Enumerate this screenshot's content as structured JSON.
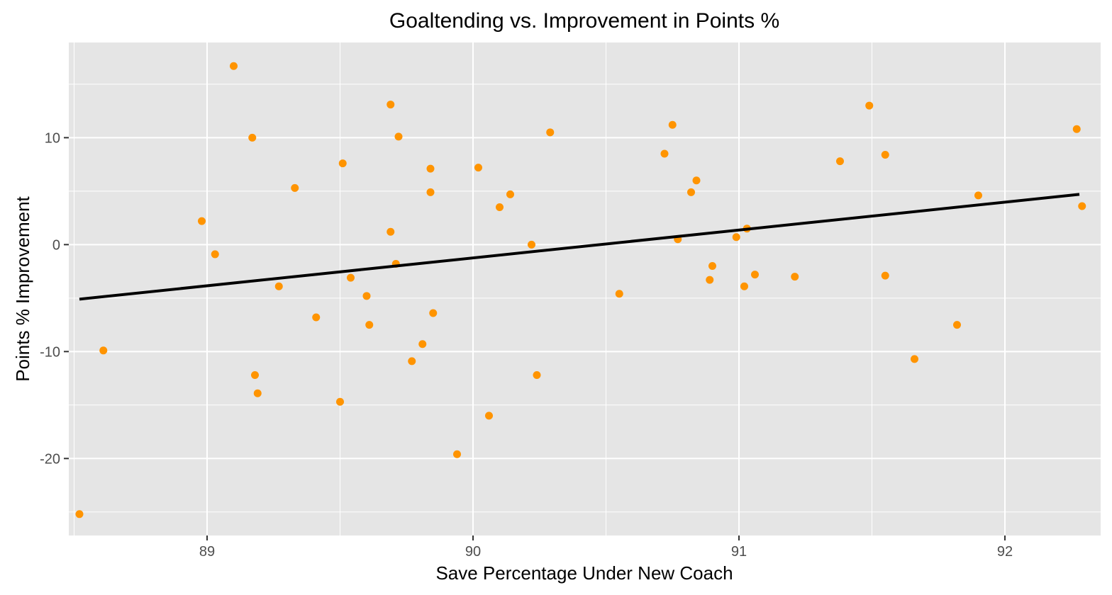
{
  "chart_data": {
    "type": "scatter",
    "title": "Goaltending vs. Improvement in Points %",
    "xlabel": "Save Percentage Under New Coach",
    "ylabel": "Points % Improvement",
    "xlim": [
      88.48,
      92.36
    ],
    "ylim": [
      -27.2,
      18.9
    ],
    "x_ticks": [
      89,
      90,
      91,
      92
    ],
    "x_tick_labels": [
      "89",
      "90",
      "91",
      "92"
    ],
    "y_ticks": [
      -20,
      -10,
      0,
      10
    ],
    "y_tick_labels": [
      "-20",
      "-10",
      "0",
      "10"
    ],
    "grid": true,
    "legend": "none",
    "point_color": "#FF9400",
    "trend_color": "#000000",
    "panel_color": "#E5E5E5",
    "points": [
      {
        "x": 88.52,
        "y": -25.2
      },
      {
        "x": 88.61,
        "y": -9.9
      },
      {
        "x": 88.98,
        "y": 2.2
      },
      {
        "x": 89.03,
        "y": -0.9
      },
      {
        "x": 89.1,
        "y": 16.7
      },
      {
        "x": 89.17,
        "y": 10.0
      },
      {
        "x": 89.18,
        "y": -12.2
      },
      {
        "x": 89.19,
        "y": -13.9
      },
      {
        "x": 89.27,
        "y": -3.9
      },
      {
        "x": 89.33,
        "y": 5.3
      },
      {
        "x": 89.41,
        "y": -6.8
      },
      {
        "x": 89.5,
        "y": -14.7
      },
      {
        "x": 89.51,
        "y": 7.6
      },
      {
        "x": 89.54,
        "y": -3.1
      },
      {
        "x": 89.6,
        "y": -4.8
      },
      {
        "x": 89.61,
        "y": -7.5
      },
      {
        "x": 89.69,
        "y": 13.1
      },
      {
        "x": 89.69,
        "y": 1.2
      },
      {
        "x": 89.71,
        "y": -1.8
      },
      {
        "x": 89.72,
        "y": 10.1
      },
      {
        "x": 89.77,
        "y": -10.9
      },
      {
        "x": 89.81,
        "y": -9.3
      },
      {
        "x": 89.84,
        "y": 7.1
      },
      {
        "x": 89.84,
        "y": 4.9
      },
      {
        "x": 89.85,
        "y": -6.4
      },
      {
        "x": 89.94,
        "y": -19.6
      },
      {
        "x": 90.02,
        "y": 7.2
      },
      {
        "x": 90.06,
        "y": -16.0
      },
      {
        "x": 90.1,
        "y": 3.5
      },
      {
        "x": 90.14,
        "y": 4.7
      },
      {
        "x": 90.22,
        "y": 0.0
      },
      {
        "x": 90.24,
        "y": -12.2
      },
      {
        "x": 90.29,
        "y": 10.5
      },
      {
        "x": 90.55,
        "y": -4.6
      },
      {
        "x": 90.72,
        "y": 8.5
      },
      {
        "x": 90.75,
        "y": 11.2
      },
      {
        "x": 90.77,
        "y": 0.5
      },
      {
        "x": 90.82,
        "y": 4.9
      },
      {
        "x": 90.84,
        "y": 6.0
      },
      {
        "x": 90.89,
        "y": -3.3
      },
      {
        "x": 90.9,
        "y": -2.0
      },
      {
        "x": 90.99,
        "y": 0.7
      },
      {
        "x": 91.02,
        "y": -3.9
      },
      {
        "x": 91.03,
        "y": 1.5
      },
      {
        "x": 91.06,
        "y": -2.8
      },
      {
        "x": 91.21,
        "y": -3.0
      },
      {
        "x": 91.38,
        "y": 7.8
      },
      {
        "x": 91.49,
        "y": 13.0
      },
      {
        "x": 91.55,
        "y": 8.4
      },
      {
        "x": 91.55,
        "y": -2.9
      },
      {
        "x": 91.66,
        "y": -10.7
      },
      {
        "x": 91.82,
        "y": -7.5
      },
      {
        "x": 91.9,
        "y": 4.6
      },
      {
        "x": 92.27,
        "y": 10.8
      },
      {
        "x": 92.29,
        "y": 3.6
      }
    ],
    "trend_line": {
      "x": [
        88.52,
        92.28
      ],
      "y": [
        -5.1,
        4.7
      ]
    }
  }
}
